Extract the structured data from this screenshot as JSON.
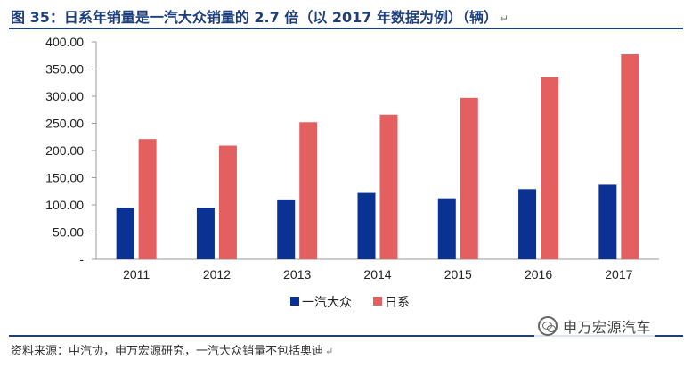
{
  "figure": {
    "title": "图 35：日系年销量是一汽大众销量的 2.7 倍（以 2017 年数据为例）（辆）",
    "title_mark": "↵",
    "source": "资料来源：中汽协，申万宏源研究，一汽大众销量不包括奥迪",
    "source_mark": "↵",
    "watermark_text": "申万宏源汽车",
    "watermark_icon": "wechat-icon"
  },
  "chart_data": {
    "type": "bar",
    "categories": [
      "2011",
      "2012",
      "2013",
      "2014",
      "2015",
      "2016",
      "2017"
    ],
    "series": [
      {
        "name": "一汽大众",
        "color": "#0b3292",
        "values": [
          95,
          95,
          110,
          122,
          112,
          129,
          137
        ]
      },
      {
        "name": "日系",
        "color": "#e35f60",
        "values": [
          221,
          209,
          252,
          266,
          297,
          335,
          377
        ]
      }
    ],
    "yticks": [
      {
        "value": 0,
        "label": "-"
      },
      {
        "value": 50,
        "label": "50.00"
      },
      {
        "value": 100,
        "label": "100.00"
      },
      {
        "value": 150,
        "label": "150.00"
      },
      {
        "value": 200,
        "label": "200.00"
      },
      {
        "value": 250,
        "label": "250.00"
      },
      {
        "value": 300,
        "label": "300.00"
      },
      {
        "value": 350,
        "label": "350.00"
      },
      {
        "value": 400,
        "label": "400.00"
      }
    ],
    "ylim": [
      0,
      400
    ],
    "grid": false,
    "legend_position": "bottom-center"
  }
}
